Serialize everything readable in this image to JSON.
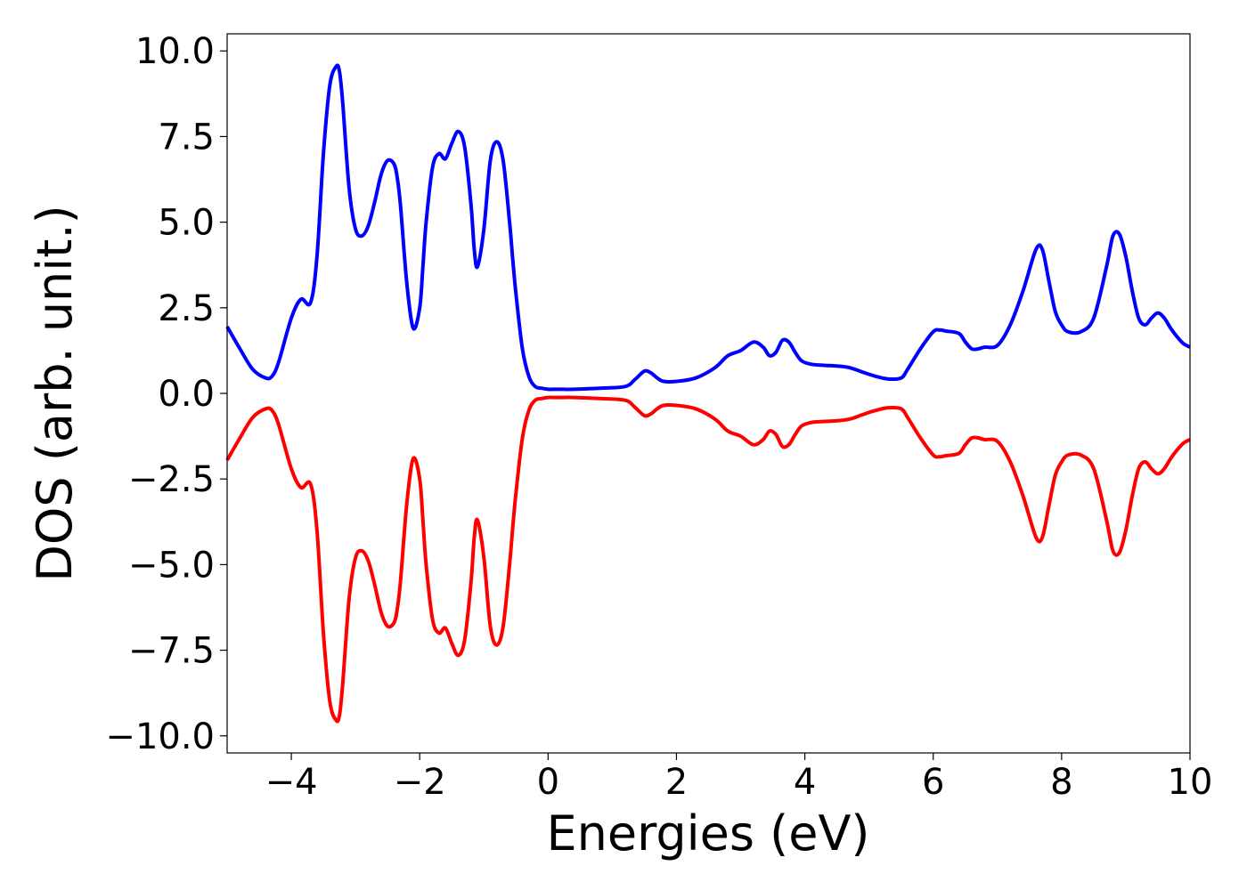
{
  "chart_data": {
    "type": "line",
    "title": "",
    "xlabel": "Energies (eV)",
    "ylabel": "DOS (arb. unit.)",
    "xlim": [
      -5,
      10
    ],
    "ylim": [
      -10.5,
      10.5
    ],
    "grid": false,
    "legend": "none",
    "xticks": [
      -4,
      -2,
      0,
      2,
      4,
      6,
      8,
      10
    ],
    "xtick_labels": [
      "−4",
      "−2",
      "0",
      "2",
      "4",
      "6",
      "8",
      "10"
    ],
    "yticks": [
      -10,
      -7.5,
      -5,
      -2.5,
      0,
      2.5,
      5,
      7.5,
      10
    ],
    "ytick_labels": [
      "−10.0",
      "−7.5",
      "−5.0",
      "−2.5",
      "0.0",
      "2.5",
      "5.0",
      "7.5",
      "10.0"
    ],
    "series": [
      {
        "color": "#0000ff",
        "x": [
          -5.0,
          -4.8,
          -4.6,
          -4.4,
          -4.3,
          -4.2,
          -4.0,
          -3.85,
          -3.7,
          -3.6,
          -3.5,
          -3.4,
          -3.3,
          -3.25,
          -3.2,
          -3.1,
          -3.0,
          -2.9,
          -2.8,
          -2.7,
          -2.6,
          -2.5,
          -2.4,
          -2.35,
          -2.3,
          -2.2,
          -2.1,
          -2.0,
          -1.95,
          -1.9,
          -1.8,
          -1.7,
          -1.6,
          -1.5,
          -1.4,
          -1.3,
          -1.2,
          -1.15,
          -1.1,
          -1.0,
          -0.9,
          -0.8,
          -0.7,
          -0.6,
          -0.55,
          -0.5,
          -0.4,
          -0.3,
          -0.2,
          -0.1,
          0.0,
          0.1,
          0.2,
          0.4,
          0.8,
          1.2,
          1.35,
          1.5,
          1.6,
          1.7,
          1.8,
          2.0,
          2.3,
          2.6,
          2.8,
          3.0,
          3.2,
          3.35,
          3.45,
          3.55,
          3.65,
          3.75,
          3.85,
          3.95,
          4.1,
          4.3,
          4.5,
          4.7,
          4.9,
          5.1,
          5.3,
          5.5,
          5.6,
          5.8,
          6.0,
          6.1,
          6.2,
          6.4,
          6.5,
          6.6,
          6.7,
          6.8,
          7.0,
          7.2,
          7.4,
          7.6,
          7.7,
          7.8,
          7.9,
          8.0,
          8.1,
          8.3,
          8.5,
          8.7,
          8.8,
          8.9,
          9.0,
          9.1,
          9.2,
          9.3,
          9.4,
          9.5,
          9.6,
          9.7,
          9.8,
          9.9,
          10.0
        ],
        "y": [
          1.95,
          1.3,
          0.7,
          0.45,
          0.5,
          0.9,
          2.2,
          2.75,
          2.65,
          4.0,
          7.0,
          9.0,
          9.55,
          9.4,
          8.5,
          6.0,
          4.8,
          4.6,
          4.9,
          5.6,
          6.4,
          6.8,
          6.7,
          6.3,
          5.5,
          3.2,
          1.9,
          2.5,
          3.7,
          5.0,
          6.6,
          7.0,
          6.85,
          7.3,
          7.65,
          7.2,
          5.5,
          4.2,
          3.7,
          4.8,
          6.8,
          7.35,
          6.8,
          5.0,
          3.9,
          2.9,
          1.3,
          0.5,
          0.2,
          0.15,
          0.12,
          0.12,
          0.12,
          0.12,
          0.15,
          0.2,
          0.4,
          0.65,
          0.6,
          0.45,
          0.35,
          0.35,
          0.45,
          0.75,
          1.1,
          1.25,
          1.5,
          1.35,
          1.1,
          1.2,
          1.55,
          1.5,
          1.2,
          0.95,
          0.85,
          0.82,
          0.8,
          0.75,
          0.62,
          0.5,
          0.42,
          0.45,
          0.7,
          1.3,
          1.8,
          1.85,
          1.82,
          1.75,
          1.5,
          1.3,
          1.3,
          1.35,
          1.4,
          2.0,
          3.0,
          4.2,
          4.2,
          3.3,
          2.4,
          2.0,
          1.8,
          1.8,
          2.2,
          3.7,
          4.6,
          4.65,
          4.0,
          3.0,
          2.2,
          2.0,
          2.2,
          2.35,
          2.2,
          1.9,
          1.65,
          1.45,
          1.35
        ]
      },
      {
        "color": "#ff0000",
        "x": [
          -5.0,
          -4.8,
          -4.6,
          -4.4,
          -4.3,
          -4.2,
          -4.0,
          -3.85,
          -3.7,
          -3.6,
          -3.5,
          -3.4,
          -3.3,
          -3.25,
          -3.2,
          -3.1,
          -3.0,
          -2.9,
          -2.8,
          -2.7,
          -2.6,
          -2.5,
          -2.4,
          -2.35,
          -2.3,
          -2.2,
          -2.1,
          -2.0,
          -1.95,
          -1.9,
          -1.8,
          -1.7,
          -1.6,
          -1.5,
          -1.4,
          -1.3,
          -1.2,
          -1.15,
          -1.1,
          -1.0,
          -0.9,
          -0.8,
          -0.7,
          -0.6,
          -0.55,
          -0.5,
          -0.4,
          -0.3,
          -0.2,
          -0.1,
          0.0,
          0.1,
          0.2,
          0.4,
          0.8,
          1.2,
          1.35,
          1.5,
          1.6,
          1.7,
          1.8,
          2.0,
          2.3,
          2.6,
          2.8,
          3.0,
          3.2,
          3.35,
          3.45,
          3.55,
          3.65,
          3.75,
          3.85,
          3.95,
          4.1,
          4.3,
          4.5,
          4.7,
          4.9,
          5.1,
          5.3,
          5.5,
          5.6,
          5.8,
          6.0,
          6.1,
          6.2,
          6.4,
          6.5,
          6.6,
          6.7,
          6.8,
          7.0,
          7.2,
          7.4,
          7.6,
          7.7,
          7.8,
          7.9,
          8.0,
          8.1,
          8.3,
          8.5,
          8.7,
          8.8,
          8.9,
          9.0,
          9.1,
          9.2,
          9.3,
          9.4,
          9.5,
          9.6,
          9.7,
          9.8,
          9.9,
          10.0
        ],
        "y": [
          -1.95,
          -1.3,
          -0.7,
          -0.45,
          -0.5,
          -0.9,
          -2.2,
          -2.75,
          -2.65,
          -4.0,
          -7.0,
          -9.0,
          -9.55,
          -9.4,
          -8.5,
          -6.0,
          -4.8,
          -4.6,
          -4.9,
          -5.6,
          -6.4,
          -6.8,
          -6.7,
          -6.3,
          -5.5,
          -3.2,
          -1.9,
          -2.5,
          -3.7,
          -5.0,
          -6.6,
          -7.0,
          -6.85,
          -7.3,
          -7.65,
          -7.2,
          -5.5,
          -4.2,
          -3.7,
          -4.8,
          -6.8,
          -7.35,
          -6.8,
          -5.0,
          -3.9,
          -2.9,
          -1.3,
          -0.5,
          -0.2,
          -0.15,
          -0.12,
          -0.12,
          -0.12,
          -0.12,
          -0.15,
          -0.2,
          -0.4,
          -0.65,
          -0.6,
          -0.45,
          -0.35,
          -0.35,
          -0.45,
          -0.75,
          -1.1,
          -1.25,
          -1.5,
          -1.35,
          -1.1,
          -1.2,
          -1.55,
          -1.5,
          -1.2,
          -0.95,
          -0.85,
          -0.82,
          -0.8,
          -0.75,
          -0.62,
          -0.5,
          -0.42,
          -0.45,
          -0.7,
          -1.3,
          -1.8,
          -1.85,
          -1.82,
          -1.75,
          -1.5,
          -1.3,
          -1.3,
          -1.35,
          -1.4,
          -2.0,
          -3.0,
          -4.2,
          -4.2,
          -3.3,
          -2.4,
          -2.0,
          -1.8,
          -1.8,
          -2.2,
          -3.7,
          -4.6,
          -4.65,
          -4.0,
          -3.0,
          -2.2,
          -2.0,
          -2.2,
          -2.35,
          -2.2,
          -1.9,
          -1.65,
          -1.45,
          -1.35
        ]
      }
    ]
  }
}
